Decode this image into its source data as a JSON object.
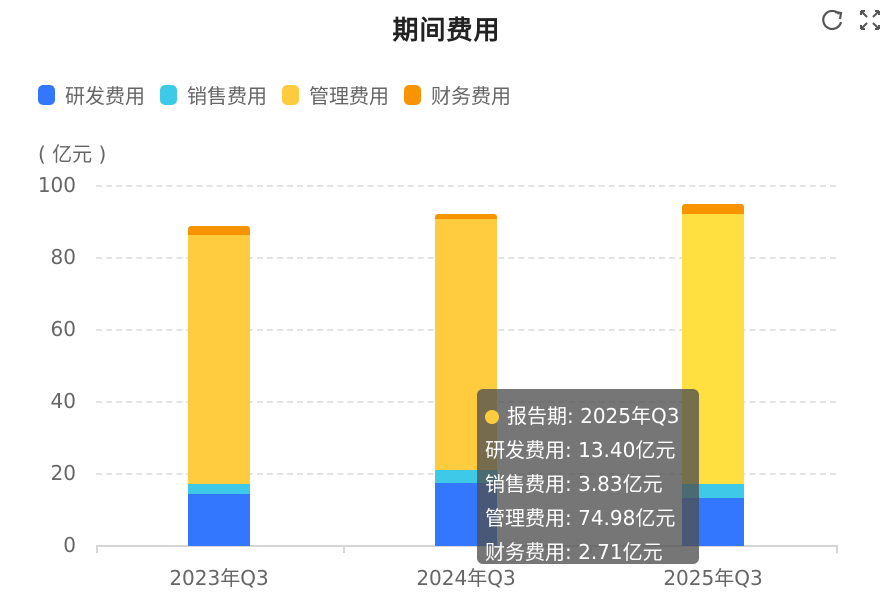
{
  "header": {
    "title": "期间费用",
    "refresh_icon": "refresh-icon",
    "fullscreen_icon": "expand-icon"
  },
  "legend": [
    {
      "label": "研发费用",
      "color": "#3377ff"
    },
    {
      "label": "销售费用",
      "color": "#3ec9e8"
    },
    {
      "label": "管理费用",
      "color": "#ffcc40"
    },
    {
      "label": "财务费用",
      "color": "#f79400"
    }
  ],
  "axis": {
    "unit": "( 亿元 )",
    "yticks": [
      "100",
      "80",
      "60",
      "40",
      "20",
      "0"
    ],
    "xticks": [
      "2023年Q3",
      "2024年Q3",
      "2025年Q3"
    ]
  },
  "tooltip": {
    "header": "报告期: 2025年Q3",
    "dot_color": "#ffcc40",
    "rows": [
      "研发费用: 13.40亿元",
      "销售费用: 3.83亿元",
      "管理费用: 74.98亿元",
      "财务费用: 2.71亿元"
    ]
  },
  "chart_data": {
    "type": "bar",
    "stacked": true,
    "title": "期间费用",
    "xlabel": "",
    "ylabel": "亿元",
    "ylim": [
      0,
      100
    ],
    "yticks": [
      0,
      20,
      40,
      60,
      80,
      100
    ],
    "grid": true,
    "legend_position": "top-left",
    "categories": [
      "2023年Q3",
      "2024年Q3",
      "2025年Q3"
    ],
    "series": [
      {
        "name": "研发费用",
        "color": "#3377ff",
        "values": [
          14.4,
          17.5,
          13.4
        ]
      },
      {
        "name": "销售费用",
        "color": "#3ec9e8",
        "values": [
          2.9,
          3.6,
          3.83
        ]
      },
      {
        "name": "管理费用",
        "color": "#ffcc40",
        "values": [
          69.2,
          69.7,
          74.98
        ]
      },
      {
        "name": "财务费用",
        "color": "#f79400",
        "values": [
          2.5,
          1.4,
          2.71
        ]
      }
    ],
    "highlighted_category": "2025年Q3"
  }
}
